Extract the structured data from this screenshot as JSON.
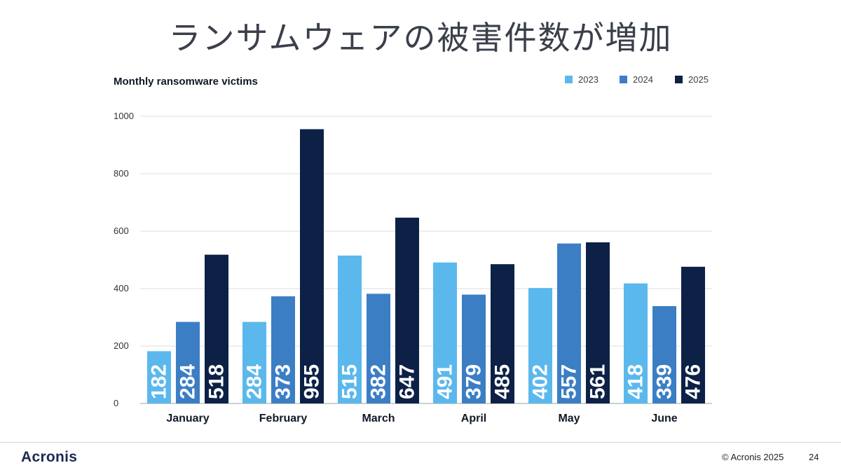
{
  "slide": {
    "title": "ランサムウェアの被害件数が増加",
    "logo": "Acronis",
    "copyright": "© Acronis 2025",
    "page_number": "24"
  },
  "chart_data": {
    "type": "bar",
    "title": "Monthly ransomware victims",
    "xlabel": "",
    "ylabel": "",
    "ylim": [
      0,
      1000
    ],
    "yticks": [
      0,
      200,
      400,
      600,
      800,
      1000
    ],
    "grid": true,
    "legend_position": "top-right",
    "categories": [
      "January",
      "February",
      "March",
      "April",
      "May",
      "June"
    ],
    "series": [
      {
        "name": "2023",
        "color": "#5bb8ec",
        "values": [
          182,
          284,
          515,
          491,
          402,
          418
        ],
        "labels": [
          "182",
          "284",
          "515",
          "491",
          "402",
          "418"
        ]
      },
      {
        "name": "2024",
        "color": "#3b7ec4",
        "values": [
          284,
          373,
          382,
          379,
          557,
          339
        ],
        "labels": [
          "284",
          "373",
          "382",
          "379",
          "557",
          "339"
        ]
      },
      {
        "name": "2025",
        "color": "#0d2146",
        "values": [
          518,
          955,
          647,
          485,
          561,
          476
        ],
        "labels": [
          "518",
          "955",
          "647",
          "485",
          "561",
          "476"
        ]
      }
    ]
  }
}
